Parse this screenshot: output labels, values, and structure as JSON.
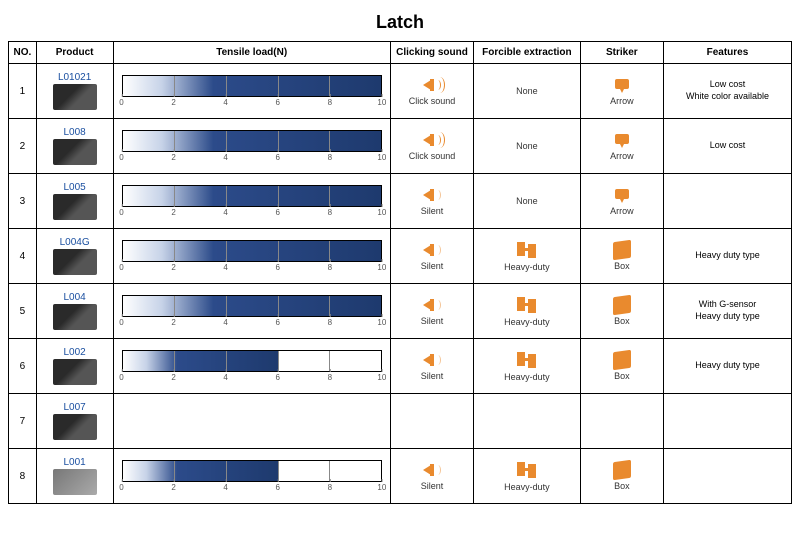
{
  "title": "Latch",
  "headers": {
    "no": "NO.",
    "product": "Product",
    "tensile": "Tensile load(N)",
    "click": "Clicking sound",
    "force": "Forcible extraction",
    "striker": "Striker",
    "features": "Features"
  },
  "tensile_axis": {
    "min": 0,
    "max": 10,
    "ticks": [
      0,
      2,
      4,
      6,
      8,
      10
    ]
  },
  "click_labels": {
    "click": "Click sound",
    "silent": "Silent"
  },
  "force_labels": {
    "none": "None",
    "heavy": "Heavy-duty"
  },
  "striker_labels": {
    "arrow": "Arrow",
    "box": "Box"
  },
  "colors": {
    "icon": "#e98a2e",
    "bar_dark": "#1e3a6e",
    "code": "#1a4fa0",
    "border": "#000000"
  },
  "rows": [
    {
      "no": "1",
      "code": "L01021",
      "img": "dark",
      "tensile": 10,
      "click": "click",
      "force": "none",
      "striker": "arrow",
      "features": "Low cost\nWhite color available"
    },
    {
      "no": "2",
      "code": "L008",
      "img": "dark",
      "tensile": 10,
      "click": "click",
      "force": "none",
      "striker": "arrow",
      "features": "Low cost"
    },
    {
      "no": "3",
      "code": "L005",
      "img": "dark",
      "tensile": 10,
      "click": "silent",
      "force": "none",
      "striker": "arrow",
      "features": ""
    },
    {
      "no": "4",
      "code": "L004G",
      "img": "dark",
      "tensile": 10,
      "click": "silent",
      "force": "heavy",
      "striker": "box",
      "features": "Heavy duty type"
    },
    {
      "no": "5",
      "code": "L004",
      "img": "dark",
      "tensile": 10,
      "click": "silent",
      "force": "heavy",
      "striker": "box",
      "features": "With G-sensor\nHeavy duty type"
    },
    {
      "no": "6",
      "code": "L002",
      "img": "dark",
      "tensile": 6,
      "click": "silent",
      "force": "heavy",
      "striker": "box",
      "features": "Heavy duty type"
    },
    {
      "no": "7",
      "code": "L007",
      "img": "dark",
      "tensile": null,
      "click": null,
      "force": null,
      "striker": null,
      "features": ""
    },
    {
      "no": "8",
      "code": "L001",
      "img": "gray",
      "tensile": 6,
      "click": "silent",
      "force": "heavy",
      "striker": "box",
      "features": ""
    }
  ]
}
